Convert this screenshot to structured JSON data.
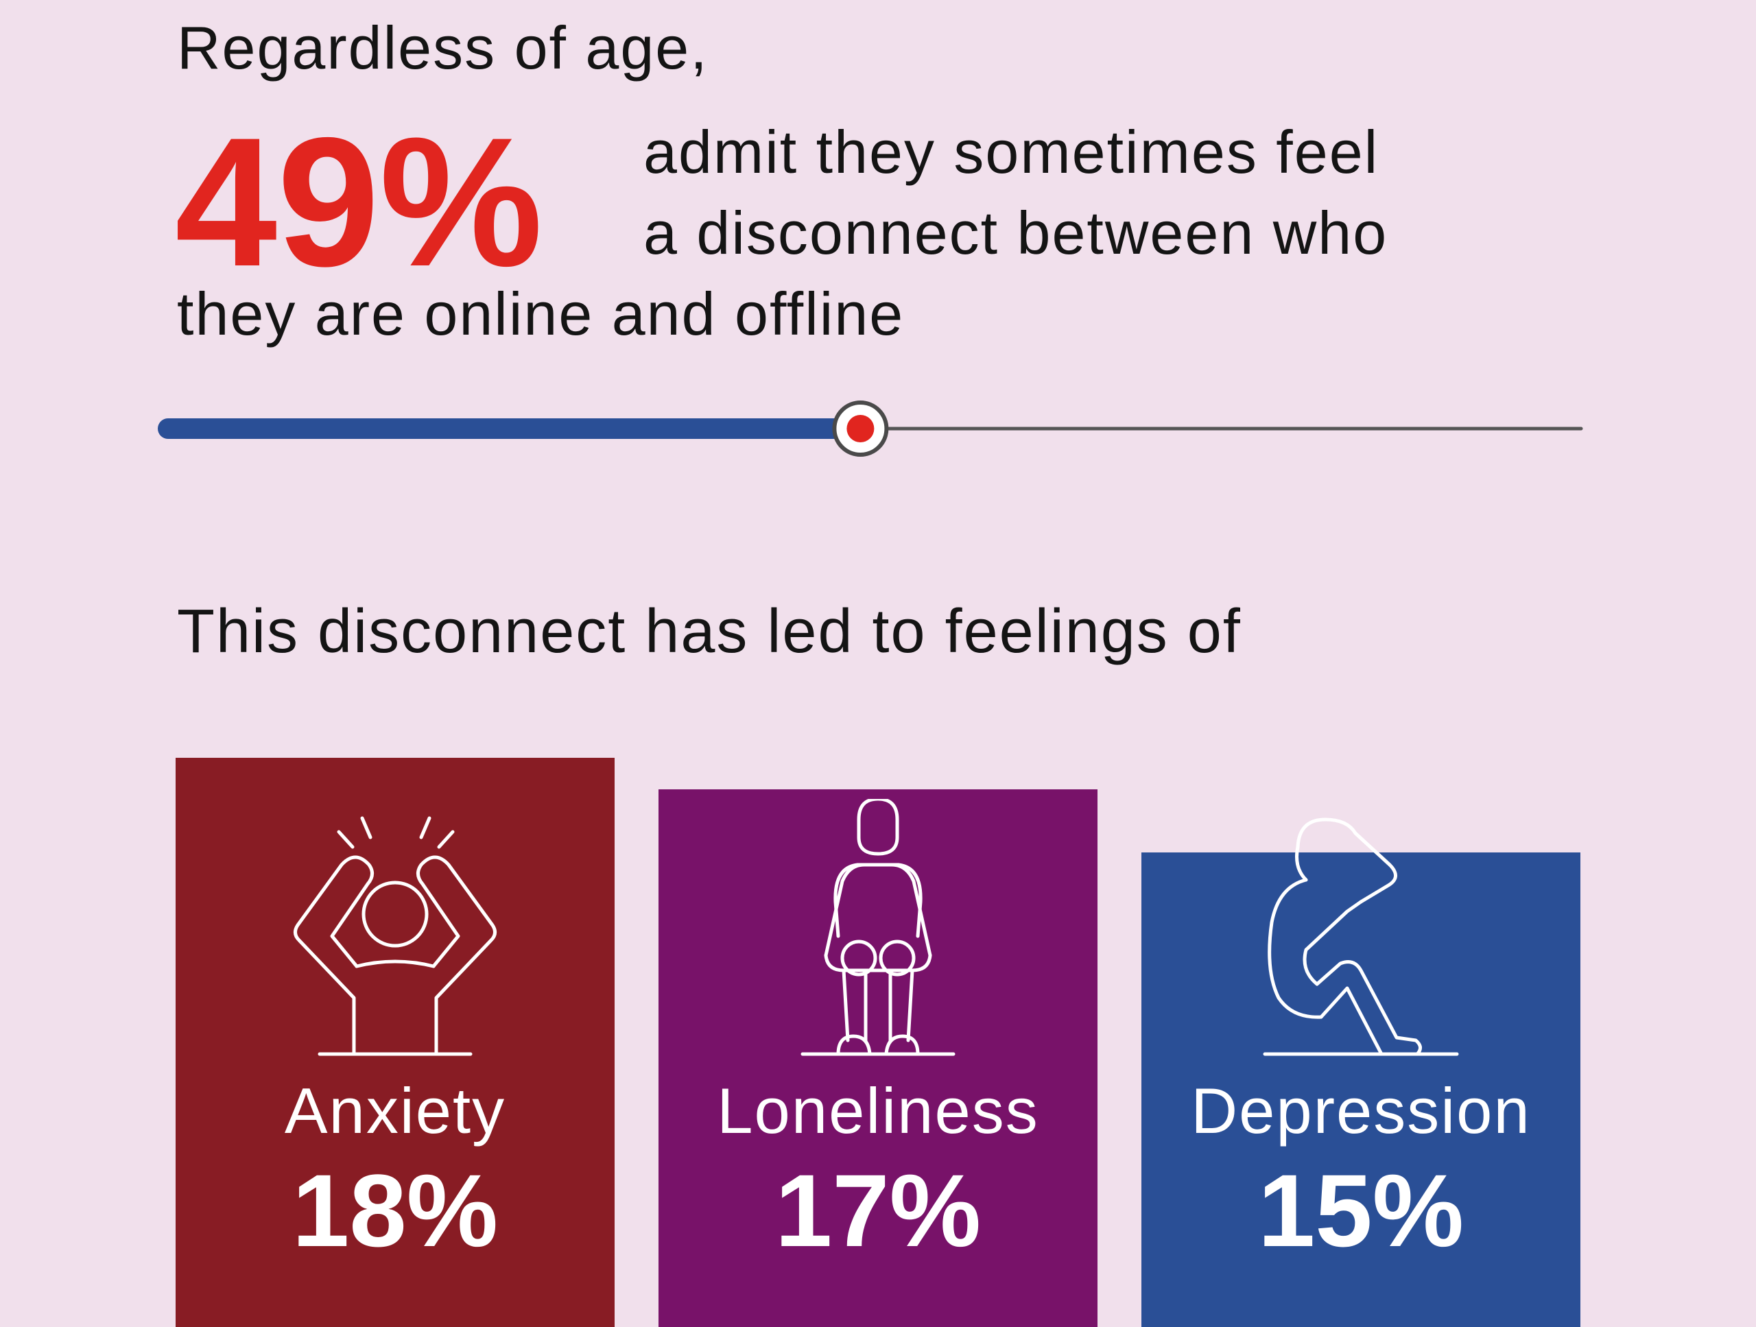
{
  "headline": {
    "intro": "Regardless of age,",
    "big_percent": "49%",
    "statement_line1": "admit they sometimes feel",
    "statement_line2": "a disconnect between who",
    "statement_line3": "they are online and offline"
  },
  "slider": {
    "value_percent": 49,
    "fill_color": "#2a4f96",
    "track_color": "#555555",
    "knob_color": "#e1251f"
  },
  "section_heading": "This disconnect has led to feelings of",
  "chart_data": {
    "type": "bar",
    "categories": [
      "Anxiety",
      "Loneliness",
      "Depression"
    ],
    "values": [
      18,
      17,
      15
    ],
    "value_labels": [
      "18%",
      "17%",
      "15%"
    ],
    "colors": [
      "#881c24",
      "#781269",
      "#2a4f96"
    ],
    "icons": [
      "stressed-person-icon",
      "lonely-person-icon",
      "depressed-person-icon"
    ]
  }
}
